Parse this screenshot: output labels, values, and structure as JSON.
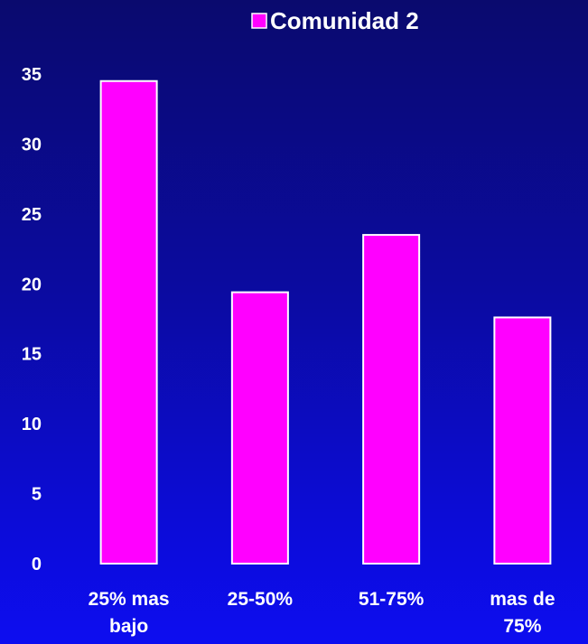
{
  "chart_data": {
    "type": "bar",
    "categories": [
      [
        "25% mas",
        "bajo"
      ],
      [
        "25-50%"
      ],
      [
        "51-75%"
      ],
      [
        "mas de",
        "75%"
      ]
    ],
    "series": [
      {
        "name": "Comunidad 2",
        "values": [
          34.5,
          19.4,
          23.5,
          17.6
        ]
      }
    ],
    "legend_text": "Comunidad 2",
    "yticks": [
      0,
      5,
      10,
      15,
      20,
      25,
      30,
      35
    ],
    "ylim": [
      0,
      35
    ],
    "grid": false,
    "legend_position": "top",
    "colors": {
      "bar_fill": "#ff00ff",
      "bar_stroke": "#ffffff",
      "text": "#ffffff"
    }
  }
}
